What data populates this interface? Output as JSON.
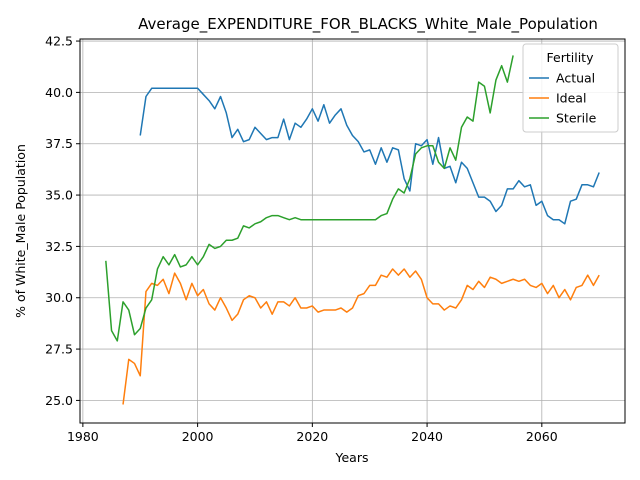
{
  "chart_data": {
    "type": "line",
    "title": "Average_EXPENDITURE_FOR_BLACKS_White_Male_Population",
    "xlabel": "Years",
    "ylabel": "% of White_Male Population",
    "xlim": [
      1979.5,
      2074.5
    ],
    "ylim": [
      23.9,
      42.6
    ],
    "xticks": [
      1980,
      2000,
      2020,
      2040,
      2060
    ],
    "yticks": [
      25.0,
      27.5,
      30.0,
      32.5,
      35.0,
      37.5,
      40.0,
      42.5
    ],
    "grid": true,
    "legend_title": "Fertility",
    "legend_position": "top-right",
    "series": [
      {
        "name": "Actual",
        "color": "#1f77b4",
        "x": [
          1990,
          1991,
          1992,
          1993,
          1994,
          1995,
          1996,
          1997,
          1998,
          1999,
          2000,
          2001,
          2002,
          2003,
          2004,
          2005,
          2006,
          2007,
          2008,
          2009,
          2010,
          2011,
          2012,
          2013,
          2014,
          2015,
          2016,
          2017,
          2018,
          2019,
          2020,
          2021,
          2022,
          2023,
          2024,
          2025,
          2026,
          2027,
          2028,
          2029,
          2030,
          2031,
          2032,
          2033,
          2034,
          2035,
          2036,
          2037,
          2038,
          2039,
          2040,
          2041,
          2042,
          2043,
          2044,
          2045,
          2046,
          2047,
          2048,
          2049,
          2050,
          2051,
          2052,
          2053,
          2054,
          2055,
          2056,
          2057,
          2058,
          2059,
          2060,
          2061,
          2062,
          2063,
          2064,
          2065,
          2066,
          2067,
          2068,
          2069,
          2070
        ],
        "y": [
          37.9,
          39.8,
          40.2,
          40.2,
          40.2,
          40.2,
          40.2,
          40.2,
          40.2,
          40.2,
          40.2,
          39.9,
          39.6,
          39.2,
          39.8,
          39.0,
          37.8,
          38.2,
          37.6,
          37.7,
          38.3,
          38.0,
          37.7,
          37.8,
          37.8,
          38.7,
          37.7,
          38.5,
          38.3,
          38.7,
          39.2,
          38.6,
          39.4,
          38.5,
          38.9,
          39.2,
          38.4,
          37.9,
          37.6,
          37.1,
          37.2,
          36.5,
          37.3,
          36.6,
          37.3,
          37.2,
          35.8,
          35.2,
          37.5,
          37.4,
          37.7,
          36.5,
          37.8,
          36.3,
          36.4,
          35.6,
          36.6,
          36.3,
          35.6,
          34.9,
          34.9,
          34.7,
          34.2,
          34.5,
          35.3,
          35.3,
          35.7,
          35.4,
          35.5,
          34.5,
          34.7,
          34.0,
          33.8,
          33.8,
          33.6,
          34.7,
          34.8,
          35.5,
          35.5,
          35.4,
          36.1
        ]
      },
      {
        "name": "Ideal",
        "color": "#ff7f0e",
        "x": [
          1987,
          1988,
          1989,
          1990,
          1991,
          1992,
          1993,
          1994,
          1995,
          1996,
          1997,
          1998,
          1999,
          2000,
          2001,
          2002,
          2003,
          2004,
          2005,
          2006,
          2007,
          2008,
          2009,
          2010,
          2011,
          2012,
          2013,
          2014,
          2015,
          2016,
          2017,
          2018,
          2019,
          2020,
          2021,
          2022,
          2023,
          2024,
          2025,
          2026,
          2027,
          2028,
          2029,
          2030,
          2031,
          2032,
          2033,
          2034,
          2035,
          2036,
          2037,
          2038,
          2039,
          2040,
          2041,
          2042,
          2043,
          2044,
          2045,
          2046,
          2047,
          2048,
          2049,
          2050,
          2051,
          2052,
          2053,
          2054,
          2055,
          2056,
          2057,
          2058,
          2059,
          2060,
          2061,
          2062,
          2063,
          2064,
          2065,
          2066,
          2067,
          2068,
          2069,
          2070
        ],
        "y": [
          24.8,
          27.0,
          26.8,
          26.2,
          30.3,
          30.7,
          30.6,
          30.9,
          30.2,
          31.2,
          30.7,
          29.9,
          30.7,
          30.1,
          30.4,
          29.7,
          29.4,
          30.0,
          29.5,
          28.9,
          29.2,
          29.9,
          30.1,
          30.0,
          29.5,
          29.8,
          29.2,
          29.8,
          29.8,
          29.6,
          30.0,
          29.5,
          29.5,
          29.6,
          29.3,
          29.4,
          29.4,
          29.4,
          29.5,
          29.3,
          29.5,
          30.1,
          30.2,
          30.6,
          30.6,
          31.1,
          31.0,
          31.4,
          31.1,
          31.4,
          31.0,
          31.3,
          30.9,
          30.0,
          29.7,
          29.7,
          29.4,
          29.6,
          29.5,
          29.9,
          30.6,
          30.4,
          30.8,
          30.5,
          31.0,
          30.9,
          30.7,
          30.8,
          30.9,
          30.8,
          30.9,
          30.6,
          30.5,
          30.7,
          30.2,
          30.6,
          30.0,
          30.4,
          29.9,
          30.5,
          30.6,
          31.1,
          30.6,
          31.1
        ]
      },
      {
        "name": "Sterile",
        "color": "#2ca02c",
        "x": [
          1984,
          1985,
          1986,
          1987,
          1988,
          1989,
          1990,
          1991,
          1992,
          1993,
          1994,
          1995,
          1996,
          1997,
          1998,
          1999,
          2000,
          2001,
          2002,
          2003,
          2004,
          2005,
          2006,
          2007,
          2008,
          2009,
          2010,
          2011,
          2012,
          2013,
          2014,
          2015,
          2016,
          2017,
          2018,
          2019,
          2020,
          2021,
          2022,
          2023,
          2024,
          2025,
          2026,
          2027,
          2028,
          2029,
          2030,
          2031,
          2032,
          2033,
          2034,
          2035,
          2036,
          2037,
          2038,
          2039,
          2040,
          2041,
          2042,
          2043,
          2044,
          2045,
          2046,
          2047,
          2048,
          2049,
          2050,
          2051,
          2052,
          2053,
          2054,
          2055
        ],
        "y": [
          31.8,
          28.4,
          27.9,
          29.8,
          29.4,
          28.2,
          28.5,
          29.5,
          29.9,
          31.4,
          32.0,
          31.6,
          32.1,
          31.5,
          31.6,
          32.0,
          31.6,
          32.0,
          32.6,
          32.4,
          32.5,
          32.8,
          32.8,
          32.9,
          33.5,
          33.4,
          33.6,
          33.7,
          33.9,
          34.0,
          34.0,
          33.9,
          33.8,
          33.9,
          33.8,
          33.8,
          33.8,
          33.8,
          33.8,
          33.8,
          33.8,
          33.8,
          33.8,
          33.8,
          33.8,
          33.8,
          33.8,
          33.8,
          34.0,
          34.1,
          34.8,
          35.3,
          35.1,
          35.8,
          37.0,
          37.3,
          37.4,
          37.4,
          36.6,
          36.3,
          37.3,
          36.7,
          38.3,
          38.8,
          38.6,
          40.5,
          40.3,
          39.0,
          40.6,
          41.3,
          40.5,
          41.8
        ]
      }
    ]
  }
}
